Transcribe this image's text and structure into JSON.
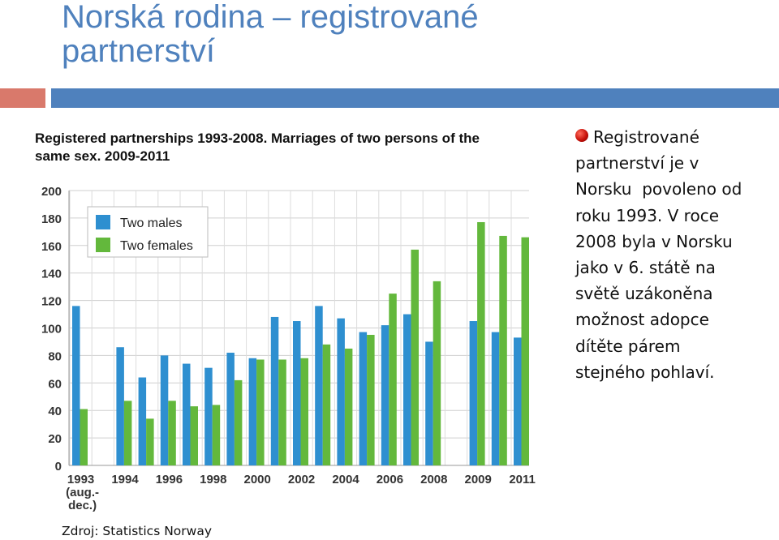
{
  "slide": {
    "title_lines": [
      "Norská rodina – registrované",
      "partnerství"
    ],
    "body_lines": [
      "Registrované",
      "partnerství je v",
      "Norsku  povoleno od",
      "roku 1993. V roce",
      "2008 byla v Norsku",
      "jako v 6. státě na",
      "světě uzákoněna",
      "možnost adopce",
      "dítěte párem",
      "stejného pohlaví."
    ],
    "source": "Zdroj: Statistics Norway",
    "accent_colors": {
      "title": "#4f81bd",
      "band_red": "#d9796b",
      "band_blue": "#4f81bd",
      "bullet": "#c8120a"
    }
  },
  "chart_data": {
    "type": "bar",
    "title_lines": [
      "Registered partnerships 1993-2008. Marriages of two persons of the",
      "same sex. 2009-2011"
    ],
    "xlabel": "",
    "ylabel": "",
    "ylim": [
      0,
      200
    ],
    "yticks": [
      0,
      20,
      40,
      60,
      80,
      100,
      120,
      140,
      160,
      180,
      200
    ],
    "grid": true,
    "legend_position": "top-left",
    "categories": [
      "1993",
      "",
      "1994",
      "1995",
      "1996",
      "1997",
      "1998",
      "1999",
      "2000",
      "2001",
      "2002",
      "2003",
      "2004",
      "2005",
      "2006",
      "2007",
      "2008",
      "",
      "2009",
      "2010",
      "2011"
    ],
    "tick_labels": [
      {
        "index": 0,
        "lines": [
          "1993",
          "(aug.-",
          "dec.)"
        ]
      },
      {
        "index": 2,
        "lines": [
          "1994"
        ]
      },
      {
        "index": 4,
        "lines": [
          "1996"
        ]
      },
      {
        "index": 6,
        "lines": [
          "1998"
        ]
      },
      {
        "index": 8,
        "lines": [
          "2000"
        ]
      },
      {
        "index": 10,
        "lines": [
          "2002"
        ]
      },
      {
        "index": 12,
        "lines": [
          "2004"
        ]
      },
      {
        "index": 14,
        "lines": [
          "2006"
        ]
      },
      {
        "index": 16,
        "lines": [
          "2008"
        ]
      },
      {
        "index": 18,
        "lines": [
          "2009"
        ]
      },
      {
        "index": 20,
        "lines": [
          "2011"
        ]
      }
    ],
    "series": [
      {
        "name": "Two males",
        "color": "#2e8fd0",
        "values": [
          116,
          null,
          86,
          64,
          80,
          74,
          71,
          82,
          78,
          108,
          105,
          116,
          107,
          97,
          102,
          110,
          90,
          null,
          105,
          97,
          93
        ]
      },
      {
        "name": "Two females",
        "color": "#63b83c",
        "values": [
          41,
          null,
          47,
          34,
          47,
          43,
          44,
          62,
          77,
          77,
          78,
          88,
          85,
          95,
          125,
          157,
          134,
          null,
          177,
          167,
          166
        ]
      }
    ]
  }
}
